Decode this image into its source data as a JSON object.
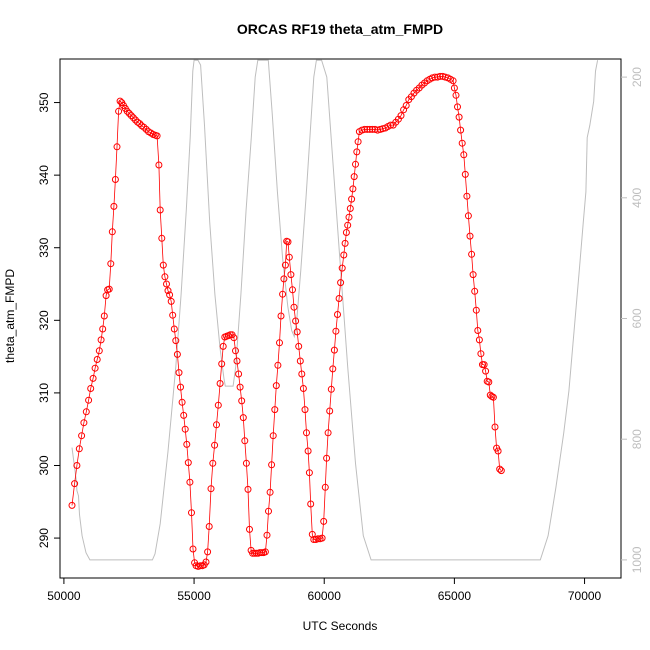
{
  "chart_data": {
    "type": "line",
    "title": "ORCAS RF19 theta_atm_FMPD",
    "xlabel": "UTC Seconds",
    "ylabel": "theta_atm_FMPD",
    "xlim": [
      49850,
      71400
    ],
    "ylim": [
      284.5,
      356
    ],
    "y2lim": [
      1030,
      170
    ],
    "x_ticks": [
      50000,
      55000,
      60000,
      65000,
      70000
    ],
    "x_tick_labels": [
      "50000",
      "55000",
      "60000",
      "65000",
      "70000"
    ],
    "y_ticks": [
      290,
      300,
      310,
      320,
      330,
      340,
      350
    ],
    "y_tick_labels": [
      "290",
      "300",
      "310",
      "320",
      "330",
      "340",
      "350"
    ],
    "y2_ticks": [
      200,
      400,
      600,
      800,
      1000
    ],
    "y2_tick_labels": [
      "200",
      "400",
      "600",
      "800",
      "1000"
    ],
    "colors": {
      "theta": "#ff0000",
      "pressure": "#bebebe",
      "axis": "#000000"
    },
    "theta_segments": [
      [
        50310,
        294.5
      ],
      [
        50410,
        297.5
      ],
      [
        50500,
        300.0
      ],
      [
        50590,
        302.3
      ],
      [
        50680,
        304.1
      ],
      [
        50770,
        305.9
      ],
      [
        50860,
        307.4
      ],
      [
        50950,
        309.0
      ],
      [
        51030,
        310.6
      ],
      [
        51120,
        312.0
      ],
      [
        51200,
        313.4
      ],
      [
        51280,
        314.6
      ],
      [
        51360,
        315.8
      ],
      [
        51430,
        317.3
      ],
      [
        51490,
        318.8
      ],
      [
        51550,
        320.6
      ],
      [
        51620,
        323.4
      ],
      [
        51680,
        324.2
      ],
      [
        51740,
        324.3
      ],
      [
        51800,
        327.8
      ],
      [
        51860,
        332.2
      ],
      [
        51920,
        335.7
      ],
      [
        51980,
        339.4
      ],
      [
        52040,
        343.9
      ],
      [
        52100,
        348.8
      ],
      [
        52160,
        350.2
      ],
      [
        52220,
        350.0
      ],
      [
        52290,
        349.6
      ],
      [
        52360,
        349.2
      ],
      [
        52430,
        348.8
      ],
      [
        52510,
        348.5
      ],
      [
        52590,
        348.2
      ],
      [
        52670,
        347.9
      ],
      [
        52750,
        347.6
      ],
      [
        52830,
        347.3
      ],
      [
        52910,
        347.1
      ],
      [
        52990,
        346.8
      ],
      [
        53070,
        346.6
      ],
      [
        53160,
        346.3
      ],
      [
        53250,
        346.0
      ],
      [
        53340,
        345.8
      ],
      [
        53430,
        345.6
      ],
      [
        53510,
        345.5
      ],
      [
        53580,
        345.4
      ],
      [
        53650,
        341.4
      ],
      [
        53700,
        335.2
      ],
      [
        53760,
        331.3
      ],
      [
        53820,
        327.6
      ],
      [
        53880,
        326.0
      ],
      [
        53940,
        325.0
      ],
      [
        54000,
        324.1
      ],
      [
        54060,
        323.5
      ],
      [
        54120,
        322.6
      ],
      [
        54180,
        320.7
      ],
      [
        54240,
        318.8
      ],
      [
        54300,
        317.2
      ],
      [
        54360,
        315.3
      ],
      [
        54420,
        312.8
      ],
      [
        54480,
        310.8
      ],
      [
        54540,
        308.7
      ],
      [
        54600,
        306.9
      ],
      [
        54660,
        305.0
      ],
      [
        54720,
        302.9
      ],
      [
        54780,
        300.4
      ],
      [
        54840,
        297.7
      ],
      [
        54900,
        293.5
      ],
      [
        54960,
        288.5
      ],
      [
        55020,
        286.6
      ],
      [
        55080,
        286.2
      ],
      [
        55160,
        286.1
      ],
      [
        55240,
        286.2
      ],
      [
        55320,
        286.2
      ],
      [
        55390,
        286.3
      ],
      [
        55460,
        286.7
      ],
      [
        55520,
        288.1
      ],
      [
        55580,
        291.6
      ],
      [
        55650,
        296.8
      ],
      [
        55720,
        300.3
      ],
      [
        55790,
        302.8
      ],
      [
        55860,
        305.6
      ],
      [
        55930,
        308.3
      ],
      [
        56000,
        311.3
      ],
      [
        56060,
        314.0
      ],
      [
        56120,
        316.4
      ],
      [
        56180,
        317.7
      ],
      [
        56250,
        317.8
      ],
      [
        56320,
        317.9
      ],
      [
        56390,
        318.0
      ],
      [
        56460,
        318.0
      ],
      [
        56530,
        317.6
      ],
      [
        56590,
        315.8
      ],
      [
        56650,
        314.4
      ],
      [
        56710,
        312.6
      ],
      [
        56770,
        310.8
      ],
      [
        56830,
        308.9
      ],
      [
        56890,
        306.6
      ],
      [
        56950,
        303.4
      ],
      [
        57010,
        300.3
      ],
      [
        57070,
        296.7
      ],
      [
        57130,
        291.2
      ],
      [
        57190,
        288.3
      ],
      [
        57250,
        287.9
      ],
      [
        57320,
        287.9
      ],
      [
        57390,
        287.9
      ],
      [
        57460,
        287.9
      ],
      [
        57530,
        288.0
      ],
      [
        57600,
        288.0
      ],
      [
        57670,
        288.0
      ],
      [
        57740,
        288.1
      ],
      [
        57800,
        290.4
      ],
      [
        57860,
        293.7
      ],
      [
        57920,
        296.3
      ],
      [
        57980,
        300.1
      ],
      [
        58040,
        304.1
      ],
      [
        58100,
        307.7
      ],
      [
        58160,
        311.0
      ],
      [
        58220,
        313.8
      ],
      [
        58280,
        316.9
      ],
      [
        58340,
        320.6
      ],
      [
        58400,
        323.6
      ],
      [
        58450,
        325.7
      ],
      [
        58510,
        327.6
      ],
      [
        58560,
        330.9
      ],
      [
        58610,
        330.8
      ],
      [
        58660,
        328.7
      ],
      [
        58720,
        326.3
      ],
      [
        58780,
        324.2
      ],
      [
        58840,
        321.8
      ],
      [
        58900,
        319.9
      ],
      [
        58960,
        318.4
      ],
      [
        59020,
        316.4
      ],
      [
        59080,
        314.4
      ],
      [
        59140,
        312.6
      ],
      [
        59200,
        310.6
      ],
      [
        59260,
        307.7
      ],
      [
        59320,
        304.5
      ],
      [
        59380,
        302.0
      ],
      [
        59430,
        299.0
      ],
      [
        59480,
        294.7
      ],
      [
        59540,
        290.5
      ],
      [
        59600,
        289.8
      ],
      [
        59680,
        289.8
      ],
      [
        59760,
        289.9
      ],
      [
        59840,
        289.9
      ],
      [
        59920,
        290.0
      ],
      [
        59980,
        292.3
      ],
      [
        60040,
        297.0
      ],
      [
        60090,
        301.0
      ],
      [
        60150,
        304.5
      ],
      [
        60210,
        307.5
      ],
      [
        60270,
        310.5
      ],
      [
        60330,
        313.3
      ],
      [
        60390,
        315.9
      ],
      [
        60450,
        318.5
      ],
      [
        60510,
        320.8
      ],
      [
        60570,
        323.0
      ],
      [
        60630,
        325.2
      ],
      [
        60690,
        327.2
      ],
      [
        60750,
        329.0
      ],
      [
        60800,
        330.6
      ],
      [
        60850,
        332.1
      ],
      [
        60900,
        333.1
      ],
      [
        60950,
        334.2
      ],
      [
        61000,
        335.4
      ],
      [
        61050,
        336.7
      ],
      [
        61100,
        338.1
      ],
      [
        61150,
        339.8
      ],
      [
        61200,
        341.5
      ],
      [
        61250,
        343.2
      ],
      [
        61300,
        344.6
      ],
      [
        61350,
        346.0
      ],
      [
        61450,
        346.2
      ],
      [
        61550,
        346.3
      ],
      [
        61650,
        346.3
      ],
      [
        61750,
        346.3
      ],
      [
        61850,
        346.3
      ],
      [
        61950,
        346.3
      ],
      [
        62050,
        346.2
      ],
      [
        62150,
        346.3
      ],
      [
        62250,
        346.4
      ],
      [
        62350,
        346.5
      ],
      [
        62450,
        346.7
      ],
      [
        62550,
        346.9
      ],
      [
        62650,
        346.9
      ],
      [
        62750,
        347.3
      ],
      [
        62850,
        347.7
      ],
      [
        62950,
        348.2
      ],
      [
        63050,
        349.0
      ],
      [
        63150,
        349.6
      ],
      [
        63250,
        350.4
      ],
      [
        63350,
        350.8
      ],
      [
        63450,
        351.3
      ],
      [
        63550,
        351.7
      ],
      [
        63650,
        352.0
      ],
      [
        63750,
        352.4
      ],
      [
        63850,
        352.7
      ],
      [
        63950,
        353.0
      ],
      [
        64050,
        353.2
      ],
      [
        64150,
        353.4
      ],
      [
        64250,
        353.5
      ],
      [
        64350,
        353.5
      ],
      [
        64450,
        353.6
      ],
      [
        64550,
        353.6
      ],
      [
        64650,
        353.5
      ],
      [
        64750,
        353.4
      ],
      [
        64850,
        353.2
      ],
      [
        64950,
        353.0
      ],
      [
        65000,
        352.0
      ],
      [
        65060,
        351.0
      ],
      [
        65120,
        349.4
      ],
      [
        65180,
        348.0
      ],
      [
        65240,
        346.2
      ],
      [
        65300,
        344.4
      ],
      [
        65360,
        342.8
      ],
      [
        65420,
        340.1
      ],
      [
        65480,
        337.1
      ],
      [
        65540,
        334.4
      ],
      [
        65600,
        331.6
      ],
      [
        65660,
        329.1
      ],
      [
        65720,
        326.3
      ],
      [
        65780,
        324.0
      ],
      [
        65840,
        321.4
      ],
      [
        65900,
        318.6
      ],
      [
        65960,
        317.3
      ],
      [
        66020,
        315.4
      ],
      [
        66080,
        313.9
      ],
      [
        66140,
        313.9
      ],
      [
        66200,
        313.0
      ],
      [
        66260,
        311.6
      ],
      [
        66320,
        311.5
      ],
      [
        66380,
        309.7
      ],
      [
        66440,
        309.5
      ],
      [
        66500,
        309.4
      ],
      [
        66560,
        305.3
      ],
      [
        66620,
        302.4
      ],
      [
        66680,
        302.0
      ],
      [
        66740,
        299.5
      ],
      [
        66800,
        299.3
      ]
    ],
    "pressure_trace": [
      [
        50310,
        814
      ],
      [
        50480,
        870
      ],
      [
        50500,
        885
      ],
      [
        50560,
        894
      ],
      [
        50600,
        925
      ],
      [
        50700,
        960
      ],
      [
        50850,
        988
      ],
      [
        51000,
        1000
      ],
      [
        52500,
        1000
      ],
      [
        53400,
        1000
      ],
      [
        53500,
        990
      ],
      [
        53700,
        940
      ],
      [
        54000,
        820
      ],
      [
        54300,
        680
      ],
      [
        54500,
        560
      ],
      [
        54700,
        420
      ],
      [
        54850,
        300
      ],
      [
        54950,
        190
      ],
      [
        55000,
        172
      ],
      [
        55150,
        172
      ],
      [
        55250,
        180
      ],
      [
        55400,
        280
      ],
      [
        55600,
        440
      ],
      [
        55800,
        560
      ],
      [
        56000,
        650
      ],
      [
        56150,
        700
      ],
      [
        56200,
        712
      ],
      [
        56500,
        712
      ],
      [
        56600,
        680
      ],
      [
        56800,
        560
      ],
      [
        57000,
        420
      ],
      [
        57200,
        300
      ],
      [
        57350,
        200
      ],
      [
        57450,
        172
      ],
      [
        57850,
        172
      ],
      [
        58000,
        260
      ],
      [
        58200,
        390
      ],
      [
        58400,
        500
      ],
      [
        58600,
        580
      ],
      [
        58750,
        620
      ],
      [
        58850,
        630
      ],
      [
        58950,
        600
      ],
      [
        59100,
        520
      ],
      [
        59300,
        400
      ],
      [
        59450,
        300
      ],
      [
        59600,
        200
      ],
      [
        59700,
        172
      ],
      [
        59900,
        172
      ],
      [
        60100,
        200
      ],
      [
        60300,
        320
      ],
      [
        60600,
        500
      ],
      [
        60900,
        680
      ],
      [
        61200,
        840
      ],
      [
        61500,
        960
      ],
      [
        61800,
        1000
      ],
      [
        62500,
        1000
      ],
      [
        67000,
        1000
      ],
      [
        68300,
        1000
      ],
      [
        68600,
        960
      ],
      [
        68900,
        880
      ],
      [
        69200,
        790
      ],
      [
        69400,
        720
      ],
      [
        69600,
        620
      ],
      [
        69800,
        520
      ],
      [
        69950,
        440
      ],
      [
        70050,
        390
      ],
      [
        70100,
        300
      ],
      [
        70200,
        280
      ],
      [
        70350,
        240
      ],
      [
        70420,
        190
      ],
      [
        70500,
        172
      ]
    ]
  }
}
